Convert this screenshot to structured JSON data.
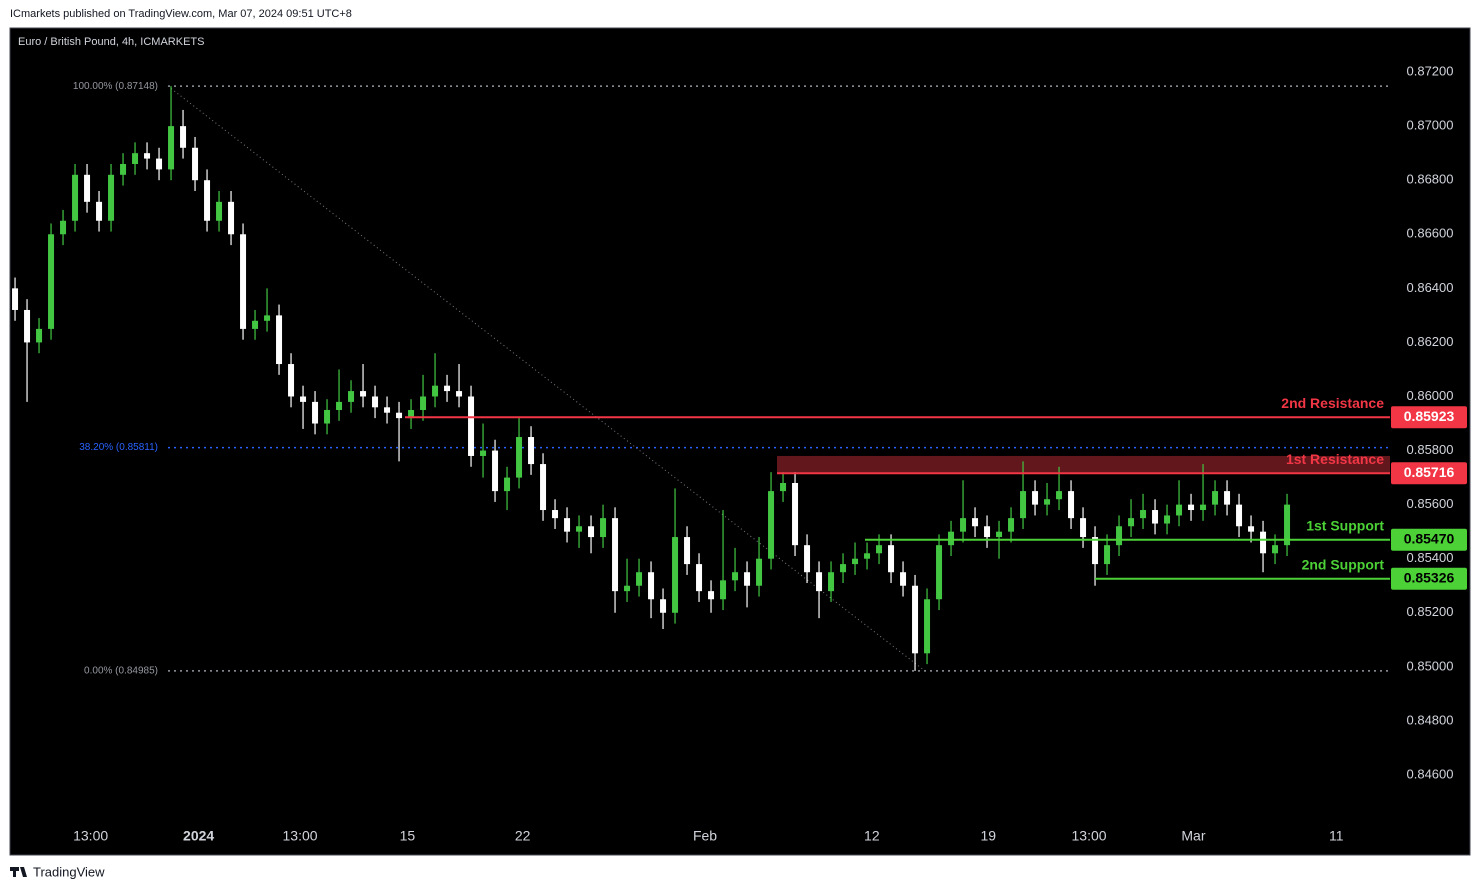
{
  "header": {
    "publisher": "ICmarkets published on TradingView.com, Mar 07, 2024 09:51 UTC+8"
  },
  "footer": {
    "brand": "TradingView"
  },
  "chart_data": {
    "type": "candlestick",
    "title": "Euro / British Pound, 4h, ICMARKETS",
    "up_color": "#43c743",
    "down_color": "#ffffff",
    "ohlc": [
      [
        0.864,
        0.8644,
        0.8628,
        0.8632
      ],
      [
        0.8632,
        0.8636,
        0.8598,
        0.862
      ],
      [
        0.862,
        0.8629,
        0.8616,
        0.8625
      ],
      [
        0.8625,
        0.8664,
        0.8621,
        0.866
      ],
      [
        0.866,
        0.8669,
        0.8656,
        0.8665
      ],
      [
        0.8665,
        0.8686,
        0.8661,
        0.8682
      ],
      [
        0.8682,
        0.8686,
        0.8668,
        0.8672
      ],
      [
        0.8672,
        0.8676,
        0.8661,
        0.8665
      ],
      [
        0.8665,
        0.8686,
        0.8661,
        0.8682
      ],
      [
        0.8682,
        0.869,
        0.8678,
        0.8686
      ],
      [
        0.8686,
        0.8694,
        0.8682,
        0.869
      ],
      [
        0.869,
        0.8694,
        0.8684,
        0.8688
      ],
      [
        0.8688,
        0.8692,
        0.868,
        0.8684
      ],
      [
        0.8684,
        0.87148,
        0.868,
        0.87
      ],
      [
        0.87,
        0.8706,
        0.8688,
        0.8692
      ],
      [
        0.8692,
        0.8696,
        0.8676,
        0.868
      ],
      [
        0.868,
        0.8684,
        0.8661,
        0.8665
      ],
      [
        0.8665,
        0.8676,
        0.8661,
        0.8672
      ],
      [
        0.8672,
        0.8676,
        0.8656,
        0.866
      ],
      [
        0.866,
        0.8664,
        0.8621,
        0.8625
      ],
      [
        0.8625,
        0.8632,
        0.8621,
        0.8628
      ],
      [
        0.8628,
        0.864,
        0.8624,
        0.863
      ],
      [
        0.863,
        0.8634,
        0.8608,
        0.8612
      ],
      [
        0.8612,
        0.8616,
        0.8596,
        0.86
      ],
      [
        0.86,
        0.8604,
        0.8588,
        0.8598
      ],
      [
        0.8598,
        0.8602,
        0.8586,
        0.859
      ],
      [
        0.859,
        0.8599,
        0.8586,
        0.8595
      ],
      [
        0.8595,
        0.861,
        0.8591,
        0.8598
      ],
      [
        0.8598,
        0.8606,
        0.8594,
        0.8602
      ],
      [
        0.8602,
        0.8612,
        0.8596,
        0.86
      ],
      [
        0.86,
        0.8604,
        0.8592,
        0.8596
      ],
      [
        0.8596,
        0.86,
        0.859,
        0.8594
      ],
      [
        0.8594,
        0.8598,
        0.8576,
        0.8592
      ],
      [
        0.8592,
        0.8599,
        0.8588,
        0.8595
      ],
      [
        0.8595,
        0.8608,
        0.8591,
        0.86
      ],
      [
        0.86,
        0.8616,
        0.8596,
        0.8604
      ],
      [
        0.8604,
        0.8608,
        0.8598,
        0.8602
      ],
      [
        0.8602,
        0.8612,
        0.8596,
        0.86
      ],
      [
        0.86,
        0.8604,
        0.8574,
        0.8578
      ],
      [
        0.8578,
        0.859,
        0.857,
        0.858
      ],
      [
        0.858,
        0.8584,
        0.8561,
        0.8565
      ],
      [
        0.8565,
        0.8574,
        0.8558,
        0.857
      ],
      [
        0.857,
        0.8592,
        0.8566,
        0.8585
      ],
      [
        0.8585,
        0.8589,
        0.8571,
        0.8575
      ],
      [
        0.8575,
        0.8579,
        0.8554,
        0.8558
      ],
      [
        0.8558,
        0.8562,
        0.8551,
        0.8555
      ],
      [
        0.8555,
        0.8559,
        0.8546,
        0.855
      ],
      [
        0.855,
        0.8556,
        0.8544,
        0.8552
      ],
      [
        0.8552,
        0.8556,
        0.8542,
        0.8548
      ],
      [
        0.8548,
        0.856,
        0.8544,
        0.8555
      ],
      [
        0.8555,
        0.8559,
        0.852,
        0.8528
      ],
      [
        0.8528,
        0.854,
        0.8524,
        0.853
      ],
      [
        0.853,
        0.854,
        0.8526,
        0.8535
      ],
      [
        0.8535,
        0.8539,
        0.8518,
        0.8525
      ],
      [
        0.8525,
        0.8529,
        0.8514,
        0.852
      ],
      [
        0.852,
        0.8566,
        0.8516,
        0.8548
      ],
      [
        0.8548,
        0.8552,
        0.8534,
        0.8538
      ],
      [
        0.8538,
        0.8542,
        0.8524,
        0.8528
      ],
      [
        0.8528,
        0.8532,
        0.852,
        0.8525
      ],
      [
        0.8525,
        0.8558,
        0.8521,
        0.8532
      ],
      [
        0.8532,
        0.8544,
        0.8528,
        0.8535
      ],
      [
        0.8535,
        0.8539,
        0.8522,
        0.853
      ],
      [
        0.853,
        0.8548,
        0.8526,
        0.854
      ],
      [
        0.854,
        0.8572,
        0.8536,
        0.8565
      ],
      [
        0.8565,
        0.8572,
        0.8561,
        0.8568
      ],
      [
        0.8568,
        0.8572,
        0.8541,
        0.8545
      ],
      [
        0.8545,
        0.8549,
        0.8531,
        0.8535
      ],
      [
        0.8535,
        0.8539,
        0.8518,
        0.8528
      ],
      [
        0.8528,
        0.8539,
        0.8524,
        0.8535
      ],
      [
        0.8535,
        0.8542,
        0.8531,
        0.8538
      ],
      [
        0.8538,
        0.8546,
        0.8534,
        0.854
      ],
      [
        0.854,
        0.8546,
        0.8536,
        0.8542
      ],
      [
        0.8542,
        0.8549,
        0.8538,
        0.8545
      ],
      [
        0.8545,
        0.8549,
        0.8531,
        0.8535
      ],
      [
        0.8535,
        0.8539,
        0.8526,
        0.853
      ],
      [
        0.853,
        0.8534,
        0.84985,
        0.8505
      ],
      [
        0.8505,
        0.8529,
        0.8501,
        0.8525
      ],
      [
        0.8525,
        0.8549,
        0.8521,
        0.8545
      ],
      [
        0.8545,
        0.8554,
        0.8541,
        0.855
      ],
      [
        0.855,
        0.8569,
        0.8546,
        0.8555
      ],
      [
        0.8555,
        0.8559,
        0.8548,
        0.8552
      ],
      [
        0.8552,
        0.8556,
        0.8544,
        0.8548
      ],
      [
        0.8548,
        0.8554,
        0.854,
        0.855
      ],
      [
        0.855,
        0.8559,
        0.8546,
        0.8555
      ],
      [
        0.8555,
        0.8576,
        0.8551,
        0.8565
      ],
      [
        0.8565,
        0.8569,
        0.8556,
        0.856
      ],
      [
        0.856,
        0.8568,
        0.8556,
        0.8562
      ],
      [
        0.8562,
        0.8574,
        0.8558,
        0.8565
      ],
      [
        0.8565,
        0.8569,
        0.8551,
        0.8555
      ],
      [
        0.8555,
        0.8559,
        0.8544,
        0.8548
      ],
      [
        0.8548,
        0.8552,
        0.853,
        0.8538
      ],
      [
        0.8538,
        0.8549,
        0.8534,
        0.8545
      ],
      [
        0.8545,
        0.8556,
        0.8541,
        0.8552
      ],
      [
        0.8552,
        0.8562,
        0.8548,
        0.8555
      ],
      [
        0.8555,
        0.8564,
        0.8551,
        0.8558
      ],
      [
        0.8558,
        0.8562,
        0.8549,
        0.8553
      ],
      [
        0.8553,
        0.856,
        0.8549,
        0.8556
      ],
      [
        0.8556,
        0.8569,
        0.8552,
        0.856
      ],
      [
        0.856,
        0.8564,
        0.8554,
        0.8558
      ],
      [
        0.8558,
        0.8575,
        0.8554,
        0.856
      ],
      [
        0.856,
        0.8569,
        0.8556,
        0.8565
      ],
      [
        0.8565,
        0.8569,
        0.8556,
        0.856
      ],
      [
        0.856,
        0.8564,
        0.8548,
        0.8552
      ],
      [
        0.8552,
        0.8556,
        0.8546,
        0.855
      ],
      [
        0.855,
        0.8554,
        0.8535,
        0.8542
      ],
      [
        0.8542,
        0.8549,
        0.8538,
        0.8545
      ],
      [
        0.8545,
        0.8564,
        0.8541,
        0.856
      ]
    ],
    "xlim": [
      -0.42,
      114.58
    ],
    "xticks": [
      {
        "value": 6.3,
        "label": "13:00"
      },
      {
        "value": 15.3,
        "label": "2024"
      },
      {
        "value": 23.75,
        "label": "13:00"
      },
      {
        "value": 32.7,
        "label": "15"
      },
      {
        "value": 42.3,
        "label": "22"
      },
      {
        "value": 57.5,
        "label": "Feb"
      },
      {
        "value": 71.4,
        "label": "12"
      },
      {
        "value": 81.1,
        "label": "19"
      },
      {
        "value": 89.5,
        "label": "13:00"
      },
      {
        "value": 98.2,
        "label": "Mar"
      },
      {
        "value": 110.1,
        "label": "11"
      }
    ],
    "ylim": [
      0.84304,
      0.87363
    ],
    "yticks": [
      {
        "value": 0.872,
        "label": "0.87200"
      },
      {
        "value": 0.87,
        "label": "0.87000"
      },
      {
        "value": 0.868,
        "label": "0.86800"
      },
      {
        "value": 0.866,
        "label": "0.86600"
      },
      {
        "value": 0.864,
        "label": "0.86400"
      },
      {
        "value": 0.862,
        "label": "0.86200"
      },
      {
        "value": 0.86,
        "label": "0.86000"
      },
      {
        "value": 0.858,
        "label": "0.85800"
      },
      {
        "value": 0.856,
        "label": "0.85600"
      },
      {
        "value": 0.854,
        "label": "0.85400"
      },
      {
        "value": 0.852,
        "label": "0.85200"
      },
      {
        "value": 0.85,
        "label": "0.85000"
      },
      {
        "value": 0.848,
        "label": "0.84800"
      },
      {
        "value": 0.846,
        "label": "0.84600"
      }
    ],
    "grid": false,
    "fib_levels": [
      {
        "value": 0.87148,
        "label": "100.00% (0.87148)",
        "color": "#9598a1"
      },
      {
        "value": 0.85811,
        "label": "38.20% (0.85811)",
        "color": "#2962ff"
      },
      {
        "value": 0.84985,
        "label": "0.00% (0.84985)",
        "color": "#9598a1"
      }
    ],
    "levels": [
      {
        "name": "2nd Resistance",
        "value": 0.85923,
        "label": "0.85923",
        "color": "#f23645"
      },
      {
        "name": "1st Resistance",
        "value": 0.85716,
        "label": "0.85716",
        "color": "#f23645",
        "zone_top": 0.8578
      },
      {
        "name": "1st Support",
        "value": 0.8547,
        "label": "0.85470",
        "color": "#4cd137"
      },
      {
        "name": "2nd Support",
        "value": 0.85326,
        "label": "0.85326",
        "color": "#4cd137"
      }
    ]
  }
}
